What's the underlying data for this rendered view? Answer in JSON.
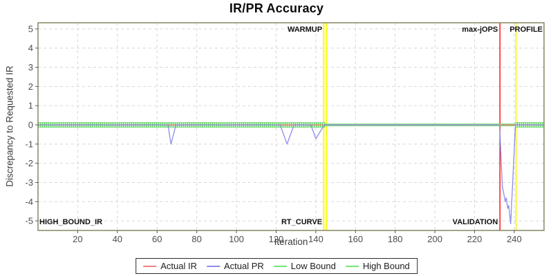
{
  "title": "IR/PR Accuracy",
  "x_axis": {
    "label": "Iteration",
    "ticks": [
      20,
      40,
      60,
      80,
      100,
      120,
      140,
      160,
      180,
      200,
      220,
      240
    ],
    "range": [
      0,
      255
    ]
  },
  "y_axis": {
    "label": "Discrepancy to Requested IR",
    "ticks": [
      5,
      4,
      3,
      2,
      1,
      0,
      -1,
      -2,
      -3,
      -4,
      -5
    ],
    "range": [
      -5.5,
      5.32
    ]
  },
  "legend": {
    "items": [
      {
        "label": "Actual IR",
        "color": "#f08080"
      },
      {
        "label": "Actual PR",
        "color": "#8c8cea"
      },
      {
        "label": "Low Bound",
        "color": "#72e572"
      },
      {
        "label": "High Bound",
        "color": "#72e572"
      }
    ]
  },
  "markers": {
    "band": {
      "x0": 143.9,
      "x1": 145.5,
      "fill": "#ffffb0",
      "edge": "#f8f800",
      "top_label": "WARMUP",
      "bottom_label": "RT_CURVE"
    },
    "lines": [
      {
        "x": 232.8,
        "color": "#ff2020",
        "top_label": "max-jOPS",
        "bottom_label": "VALIDATION",
        "label_side": "left"
      },
      {
        "x": 240.9,
        "color": "#f8f800",
        "top_label": "PROFILE",
        "bottom_label": "",
        "label_side": "right"
      }
    ],
    "corner_label": "HIGH_BOUND_IR"
  },
  "chart_data": {
    "type": "line",
    "title": "IR/PR Accuracy",
    "xlabel": "Iteration",
    "ylabel": "Discrepancy to Requested IR",
    "xlim": [
      0,
      255
    ],
    "ylim": [
      -5.5,
      5.32
    ],
    "grid": true,
    "legend_position": "bottom",
    "series": [
      {
        "name": "Actual IR",
        "color": "#ef6f6f",
        "role": "line",
        "points": [
          [
            0,
            0
          ],
          [
            255,
            0
          ]
        ]
      },
      {
        "name": "Actual PR",
        "color": "#8c8cea",
        "role": "line",
        "points": [
          [
            0,
            0
          ],
          [
            65.5,
            0
          ],
          [
            67,
            -1.0
          ],
          [
            69.5,
            0
          ],
          [
            122,
            0
          ],
          [
            125.5,
            -1.0
          ],
          [
            129,
            0
          ],
          [
            137.5,
            0
          ],
          [
            140,
            -0.72
          ],
          [
            144.3,
            0
          ],
          [
            232.6,
            0
          ],
          [
            234,
            -3.2
          ],
          [
            235.5,
            -4.0
          ],
          [
            236,
            -3.8
          ],
          [
            236.7,
            -4.35
          ],
          [
            237.2,
            -4.2
          ],
          [
            238.2,
            -5.15
          ],
          [
            240.6,
            0
          ],
          [
            255,
            0
          ]
        ]
      },
      {
        "name": "High Bound",
        "color": "#6fdc6f",
        "role": "bound",
        "points": [
          [
            0,
            0.12
          ],
          [
            144.5,
            0.12
          ],
          [
            144.5,
            0.05
          ],
          [
            240.6,
            0.05
          ],
          [
            240.6,
            0.12
          ],
          [
            255,
            0.12
          ]
        ]
      },
      {
        "name": "Low Bound",
        "color": "#6fdc6f",
        "role": "bound",
        "points": [
          [
            0,
            -0.12
          ],
          [
            144.5,
            -0.12
          ],
          [
            144.5,
            -0.05
          ],
          [
            240.6,
            -0.05
          ],
          [
            240.6,
            -0.12
          ],
          [
            255,
            -0.12
          ]
        ]
      }
    ],
    "phase_markers": {
      "warmup_band_x": [
        143.9,
        145.5
      ],
      "max_jops_x": 232.8,
      "profile_x": 240.9
    }
  },
  "style": {
    "plot_border": "#7d7d55",
    "gridline": "#d6d6d6",
    "tick_label": "#4d4d4d",
    "band_fill": "#c9f4c9",
    "band_tick": "#55cc55",
    "marker_label": "#111111"
  }
}
